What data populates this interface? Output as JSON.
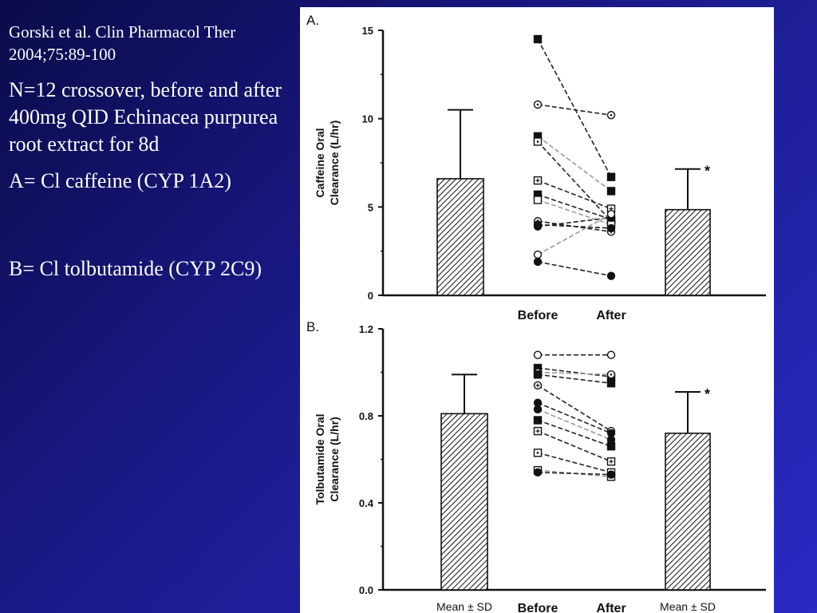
{
  "slide": {
    "citation": "Gorski et al. Clin Pharmacol Ther 2004;75:89-100",
    "study": "N=12 crossover, before and after 400mg QID Echinacea purpurea root extract for 8d",
    "item_a": "A= Cl caffeine (CYP 1A2)",
    "item_b": "B= Cl tolbutamide (CYP 2C9)"
  },
  "chart_data": [
    {
      "panel": "A.",
      "type": "bar",
      "ylabel": [
        "Caffeine Oral",
        "Clearance (L/hr)"
      ],
      "ylim": [
        0,
        15
      ],
      "yticks": [
        0,
        5,
        10,
        15
      ],
      "bars": [
        {
          "label": "",
          "mean": 6.6,
          "sd": 3.9,
          "significant": false
        },
        {
          "label": "",
          "mean": 4.85,
          "sd": 2.3,
          "significant": true
        }
      ],
      "x_labels": [
        "Before",
        "After"
      ],
      "paired": [
        {
          "before": 14.5,
          "after": 6.7,
          "marker": "square-filled"
        },
        {
          "before": 10.8,
          "after": 10.2,
          "marker": "circle-dot"
        },
        {
          "before": 9.0,
          "after": 5.9,
          "marker": "square-filled"
        },
        {
          "before": 8.7,
          "after": 4.2,
          "marker": "square-dot"
        },
        {
          "before": 6.5,
          "after": 4.9,
          "marker": "square-cross"
        },
        {
          "before": 5.7,
          "after": 4.3,
          "marker": "square-filled"
        },
        {
          "before": 5.4,
          "after": 4.0,
          "marker": "square-open"
        },
        {
          "before": 4.2,
          "after": 3.6,
          "marker": "circle-cross"
        },
        {
          "before": 4.0,
          "after": 3.8,
          "marker": "circle-filled"
        },
        {
          "before": 3.9,
          "after": 4.4,
          "marker": "circle-filled"
        },
        {
          "before": 2.3,
          "after": 4.6,
          "marker": "circle-open"
        },
        {
          "before": 1.9,
          "after": 1.1,
          "marker": "circle-filled"
        }
      ],
      "significance_mark": "*"
    },
    {
      "panel": "B.",
      "type": "bar",
      "ylabel": [
        "Tolbutamide Oral",
        "Clearance (L/hr)"
      ],
      "ylim": [
        0.0,
        1.2
      ],
      "yticks": [
        0.0,
        0.4,
        0.8,
        1.2
      ],
      "bars": [
        {
          "label": "Mean ± SD",
          "mean": 0.81,
          "sd": 0.18,
          "significant": false
        },
        {
          "label": "Mean ± SD",
          "mean": 0.72,
          "sd": 0.19,
          "significant": true
        }
      ],
      "x_labels": [
        "Before",
        "After"
      ],
      "paired": [
        {
          "before": 1.08,
          "after": 1.08,
          "marker": "circle-open"
        },
        {
          "before": 1.02,
          "after": 0.98,
          "marker": "square-filled"
        },
        {
          "before": 1.0,
          "after": 0.99,
          "marker": "circle-dot"
        },
        {
          "before": 0.99,
          "after": 0.95,
          "marker": "square-filled"
        },
        {
          "before": 0.94,
          "after": 0.73,
          "marker": "circle-cross"
        },
        {
          "before": 0.86,
          "after": 0.72,
          "marker": "circle-filled"
        },
        {
          "before": 0.83,
          "after": 0.69,
          "marker": "circle-filled"
        },
        {
          "before": 0.78,
          "after": 0.66,
          "marker": "square-filled"
        },
        {
          "before": 0.73,
          "after": 0.59,
          "marker": "square-cross"
        },
        {
          "before": 0.63,
          "after": 0.54,
          "marker": "square-dot"
        },
        {
          "before": 0.55,
          "after": 0.52,
          "marker": "square-open"
        },
        {
          "before": 0.54,
          "after": 0.53,
          "marker": "circle-filled"
        }
      ],
      "significance_mark": "*"
    }
  ]
}
